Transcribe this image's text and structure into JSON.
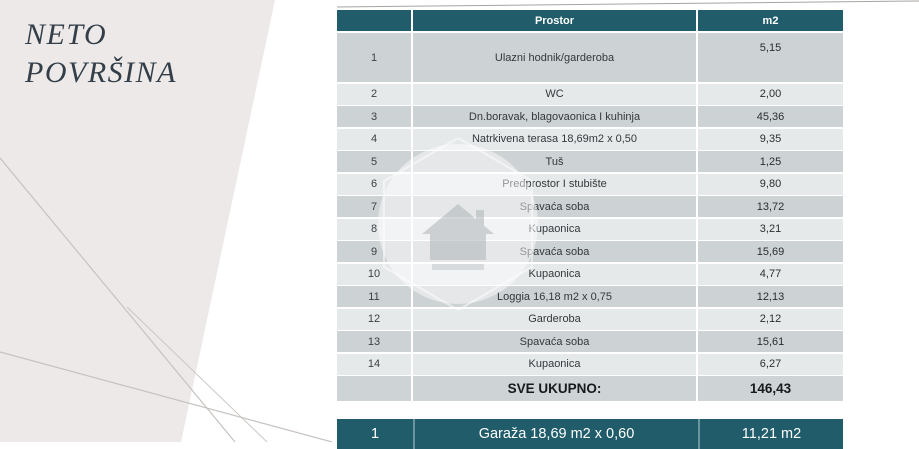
{
  "page": {
    "title_line1": "NETO",
    "title_line2": "POVRŠINA"
  },
  "colors": {
    "accent_teal": "#205c69",
    "row_dark": "#cdd2d4",
    "row_light": "#e6e9ea",
    "panel_beige": "#ece9e8",
    "title_text": "#333e48"
  },
  "icons": {
    "watermark": "house-logo-watermark-icon"
  },
  "table": {
    "headers": {
      "number": "",
      "prostor": "Prostor",
      "m2": "m2"
    },
    "rows": [
      {
        "num": "1",
        "name": "Ulazni hodnik/garderoba",
        "value": "5,15",
        "tall": true
      },
      {
        "num": "2",
        "name": "WC",
        "value": "2,00"
      },
      {
        "num": "3",
        "name": "Dn.boravak, blagovaonica I kuhinja",
        "value": "45,36"
      },
      {
        "num": "4",
        "name": "Natrkivena terasa 18,69m2 x 0,50",
        "value": "9,35"
      },
      {
        "num": "5",
        "name": "Tuš",
        "value": "1,25"
      },
      {
        "num": "6",
        "name": "Predprostor I stubište",
        "value": "9,80"
      },
      {
        "num": "7",
        "name": "Spavaća soba",
        "value": "13,72"
      },
      {
        "num": "8",
        "name": "Kupaonica",
        "value": "3,21"
      },
      {
        "num": "9",
        "name": "Spavaća soba",
        "value": "15,69"
      },
      {
        "num": "10",
        "name": "Kupaonica",
        "value": "4,77"
      },
      {
        "num": "11",
        "name": "Loggia 16,18 m2 x 0,75",
        "value": "12,13"
      },
      {
        "num": "12",
        "name": "Garderoba",
        "value": "2,12"
      },
      {
        "num": "13",
        "name": "Spavaća soba",
        "value": "15,61"
      },
      {
        "num": "14",
        "name": "Kupaonica",
        "value": "6,27"
      }
    ],
    "total": {
      "label": "SVE UKUPNO:",
      "value": "146,43"
    }
  },
  "garage_bar": {
    "num": "1",
    "name": "Garaža 18,69 m2 x 0,60",
    "value": "11,21 m2"
  }
}
